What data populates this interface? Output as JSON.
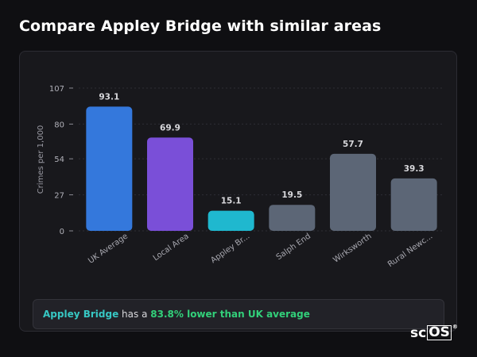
{
  "page": {
    "title": "Compare Appley Bridge with similar areas"
  },
  "chart_data": {
    "type": "bar",
    "title": "",
    "xlabel": "",
    "ylabel": "Crimes per 1,000",
    "ylim": [
      0,
      107
    ],
    "yticks": [
      0,
      27,
      54,
      80,
      107
    ],
    "grid": true,
    "categories": [
      "UK Average",
      "Local Area",
      "Appley Br...",
      "Salph End",
      "Wirksworth",
      "Rural Newc..."
    ],
    "values": [
      93.1,
      69.9,
      15.1,
      19.5,
      57.7,
      39.3
    ],
    "value_labels": [
      "93.1",
      "69.9",
      "15.1",
      "19.5",
      "57.7",
      "39.3"
    ],
    "colors": [
      "#3478dc",
      "#7a4fd8",
      "#1fb8cf",
      "#5c6676",
      "#5c6676",
      "#5c6676"
    ]
  },
  "summary": {
    "area_name": "Appley Bridge",
    "middle_text": "has a",
    "highlight": "83.8% lower than UK average"
  },
  "brand": {
    "prefix": "sc",
    "boxed": "OS",
    "mark": "®"
  }
}
